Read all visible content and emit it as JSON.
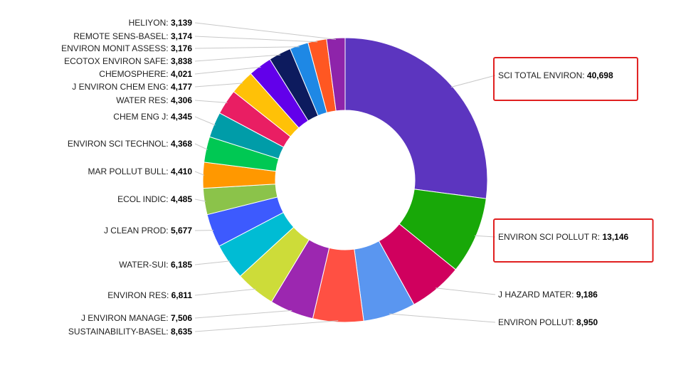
{
  "chart_data": {
    "type": "pie",
    "variant": "donut",
    "title": "",
    "series": [
      {
        "name": "SCI TOTAL ENVIRON",
        "value": 40698,
        "display": "40,698",
        "color": "#5c35bf",
        "highlighted": true
      },
      {
        "name": "ENVIRON SCI POLLUT R",
        "value": 13146,
        "display": "13,146",
        "color": "#18a808",
        "highlighted": true
      },
      {
        "name": "J HAZARD MATER",
        "value": 9186,
        "display": "9,186",
        "color": "#d0005e",
        "highlighted": false
      },
      {
        "name": "ENVIRON POLLUT",
        "value": 8950,
        "display": "8,950",
        "color": "#5a96f0",
        "highlighted": false
      },
      {
        "name": "SUSTAINABILITY-BASEL",
        "value": 8635,
        "display": "8,635",
        "color": "#ff5043",
        "highlighted": false
      },
      {
        "name": "J ENVIRON MANAGE",
        "value": 7506,
        "display": "7,506",
        "color": "#9c27b0",
        "highlighted": false
      },
      {
        "name": "ENVIRON RES",
        "value": 6811,
        "display": "6,811",
        "color": "#cddc39",
        "highlighted": false
      },
      {
        "name": "WATER-SUI",
        "value": 6185,
        "display": "6,185",
        "color": "#00bcd4",
        "highlighted": false
      },
      {
        "name": "J CLEAN PROD",
        "value": 5677,
        "display": "5,677",
        "color": "#3d5afe",
        "highlighted": false
      },
      {
        "name": "ECOL INDIC",
        "value": 4485,
        "display": "4,485",
        "color": "#8bc34a",
        "highlighted": false
      },
      {
        "name": "MAR POLLUT BULL",
        "value": 4410,
        "display": "4,410",
        "color": "#ff9800",
        "highlighted": false
      },
      {
        "name": "ENVIRON SCI TECHNOL",
        "value": 4368,
        "display": "4,368",
        "color": "#00c853",
        "highlighted": false
      },
      {
        "name": "CHEM ENG J",
        "value": 4345,
        "display": "4,345",
        "color": "#009ca8",
        "highlighted": false
      },
      {
        "name": "WATER RES",
        "value": 4306,
        "display": "4,306",
        "color": "#e91e63",
        "highlighted": false
      },
      {
        "name": "J ENVIRON CHEM ENG",
        "value": 4177,
        "display": "4,177",
        "color": "#ffc107",
        "highlighted": false
      },
      {
        "name": "CHEMOSPHERE",
        "value": 4021,
        "display": "4,021",
        "color": "#6200ea",
        "highlighted": false
      },
      {
        "name": "ECOTOX ENVIRON SAFE",
        "value": 3838,
        "display": "3,838",
        "color": "#0d1b5e",
        "highlighted": false
      },
      {
        "name": "ENVIRON MONIT ASSESS",
        "value": 3176,
        "display": "3,176",
        "color": "#1e88e5",
        "highlighted": false
      },
      {
        "name": "REMOTE SENS-BASEL",
        "value": 3174,
        "display": "3,174",
        "color": "#ff5722",
        "highlighted": false
      },
      {
        "name": "HELIYON",
        "value": 3139,
        "display": "3,139",
        "color": "#8e24aa",
        "highlighted": false
      }
    ]
  }
}
